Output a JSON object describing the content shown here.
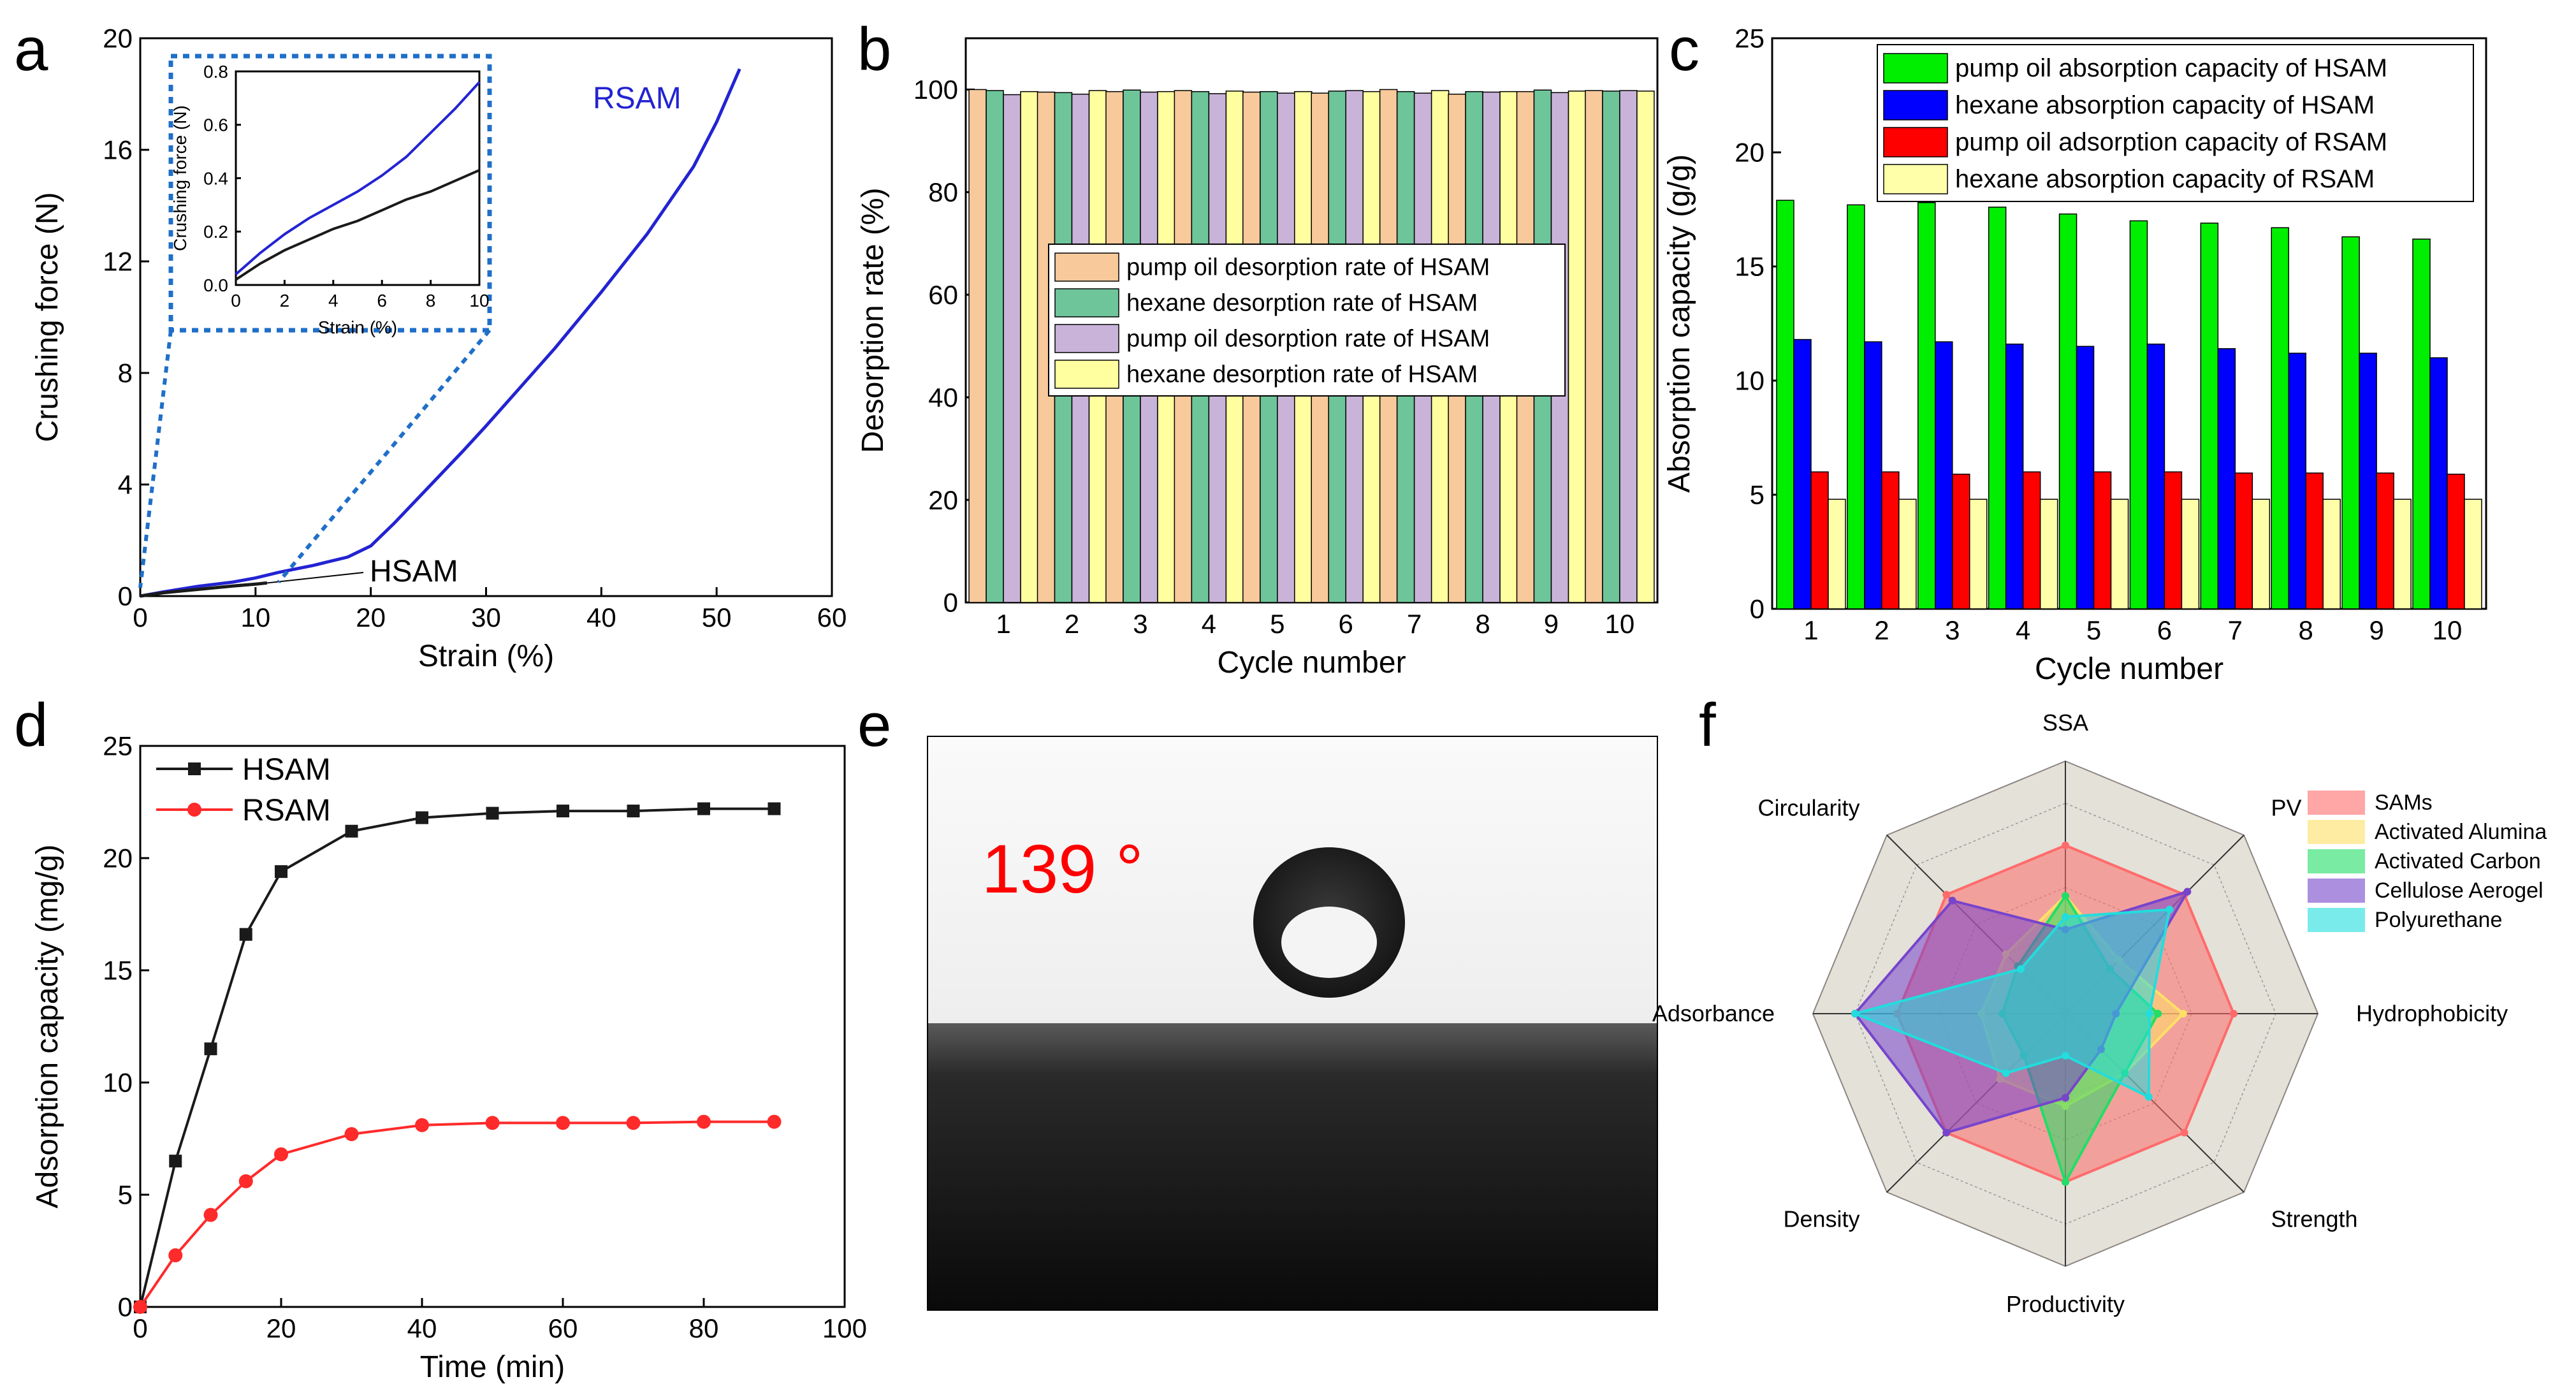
{
  "colors": {
    "axis": "#000000",
    "blue": "#2323d2",
    "black": "#1a1a1a",
    "red": "#ff2a2a",
    "inset_box": "#1f6fc8",
    "bar_b": [
      "#f7c99b",
      "#6ec59a",
      "#c9b3d9",
      "#ffffa0"
    ],
    "bar_c": [
      "#00ee00",
      "#0000ff",
      "#ff0000",
      "#ffffaa"
    ]
  },
  "chart_data": [
    {
      "panel": "a",
      "type": "line",
      "xlabel": "Strain (%)",
      "ylabel": "Crushing force (N)",
      "xlim": [
        0,
        60
      ],
      "ylim": [
        0,
        20
      ],
      "xticks": [
        0,
        10,
        20,
        30,
        40,
        50,
        60
      ],
      "yticks": [
        0,
        4,
        8,
        12,
        16,
        20
      ],
      "series": [
        {
          "name": "RSAM",
          "color": "blue",
          "x": [
            0,
            2,
            5,
            8,
            10,
            12,
            15,
            18,
            20,
            22,
            25,
            28,
            30,
            33,
            36,
            40,
            44,
            48,
            50,
            52
          ],
          "y": [
            0,
            0.15,
            0.35,
            0.5,
            0.65,
            0.85,
            1.1,
            1.4,
            1.8,
            2.6,
            3.9,
            5.2,
            6.1,
            7.5,
            8.9,
            10.9,
            13.0,
            15.4,
            17.0,
            18.9
          ]
        },
        {
          "name": "HSAM",
          "color": "black",
          "x": [
            0,
            2,
            4,
            6,
            8,
            10,
            11
          ],
          "y": [
            0,
            0.12,
            0.2,
            0.28,
            0.36,
            0.43,
            0.47
          ]
        }
      ],
      "inset": {
        "xlabel": "Strain (%)",
        "ylabel": "Crushing force (N)",
        "xlim": [
          0,
          10
        ],
        "ylim": [
          0,
          0.8
        ],
        "xticks": [
          0,
          2,
          4,
          6,
          8,
          10
        ],
        "yticks": [
          0.0,
          0.2,
          0.4,
          0.6,
          0.8
        ],
        "series": [
          {
            "name": "RSAM",
            "color": "blue",
            "x": [
              0,
              1,
              2,
              3,
              4,
              5,
              6,
              7,
              8,
              9,
              10
            ],
            "y": [
              0.04,
              0.12,
              0.19,
              0.25,
              0.3,
              0.35,
              0.41,
              0.48,
              0.57,
              0.66,
              0.76
            ]
          },
          {
            "name": "HSAM",
            "color": "black",
            "x": [
              0,
              1,
              2,
              3,
              4,
              5,
              6,
              7,
              8,
              9,
              10
            ],
            "y": [
              0.02,
              0.08,
              0.13,
              0.17,
              0.21,
              0.24,
              0.28,
              0.32,
              0.35,
              0.39,
              0.43
            ]
          }
        ]
      }
    },
    {
      "panel": "b",
      "type": "bar",
      "xlabel": "Cycle number",
      "ylabel": "Desorption rate (%)",
      "ylim": [
        0,
        110
      ],
      "yticks": [
        0,
        20,
        40,
        60,
        80,
        100
      ],
      "categories": [
        "1",
        "2",
        "3",
        "4",
        "5",
        "6",
        "7",
        "8",
        "9",
        "10"
      ],
      "series": [
        {
          "name": "pump oil desorption rate of HSAM",
          "values": [
            100,
            99.5,
            99.6,
            99.8,
            99.5,
            99.3,
            100,
            99.1,
            99.6,
            99.8
          ]
        },
        {
          "name": "hexane desorption rate of HSAM",
          "values": [
            99.8,
            99.4,
            99.9,
            99.6,
            99.6,
            99.7,
            99.6,
            99.6,
            99.9,
            99.7
          ]
        },
        {
          "name": "pump oil desorption rate of HSAM",
          "values": [
            99.0,
            99.1,
            99.5,
            99.2,
            99.3,
            99.8,
            99.3,
            99.5,
            99.4,
            99.8
          ]
        },
        {
          "name": "hexane desorption rate of HSAM",
          "values": [
            99.6,
            99.8,
            99.6,
            99.7,
            99.6,
            99.6,
            99.8,
            99.6,
            99.7,
            99.7
          ]
        }
      ]
    },
    {
      "panel": "c",
      "type": "bar",
      "xlabel": "Cycle number",
      "ylabel": "Absorption capacity (g/g)",
      "ylim": [
        0,
        25
      ],
      "yticks": [
        0,
        5,
        10,
        15,
        20,
        25
      ],
      "categories": [
        "1",
        "2",
        "3",
        "4",
        "5",
        "6",
        "7",
        "8",
        "9",
        "10"
      ],
      "series": [
        {
          "name": "pump oil absorption capacity of HSAM",
          "values": [
            17.9,
            17.7,
            17.8,
            17.6,
            17.3,
            17.0,
            16.9,
            16.7,
            16.3,
            16.2
          ]
        },
        {
          "name": "hexane absorption capacity of HSAM",
          "values": [
            11.8,
            11.7,
            11.7,
            11.6,
            11.5,
            11.6,
            11.4,
            11.2,
            11.2,
            11.0
          ]
        },
        {
          "name": "pump oil adsorption capacity of RSAM",
          "values": [
            6.0,
            6.0,
            5.9,
            6.0,
            6.0,
            6.0,
            5.95,
            5.95,
            5.95,
            5.9
          ]
        },
        {
          "name": "hexane absorption capacity of RSAM",
          "values": [
            4.8,
            4.8,
            4.8,
            4.8,
            4.8,
            4.8,
            4.8,
            4.8,
            4.8,
            4.8
          ]
        }
      ]
    },
    {
      "panel": "d",
      "type": "line",
      "xlabel": "Time (min)",
      "ylabel": "Adsorption capacity (mg/g)",
      "xlim": [
        0,
        100
      ],
      "ylim": [
        0,
        25
      ],
      "xticks": [
        0,
        20,
        40,
        60,
        80,
        100
      ],
      "yticks": [
        0,
        5,
        10,
        15,
        20,
        25
      ],
      "series": [
        {
          "name": "HSAM",
          "color": "black",
          "marker": "square",
          "x": [
            0,
            5,
            10,
            15,
            20,
            30,
            40,
            50,
            60,
            70,
            80,
            90
          ],
          "y": [
            0,
            6.5,
            11.5,
            16.6,
            19.4,
            21.2,
            21.8,
            22.0,
            22.1,
            22.1,
            22.2,
            22.2
          ]
        },
        {
          "name": "RSAM",
          "color": "red",
          "marker": "circle",
          "x": [
            0,
            5,
            10,
            15,
            20,
            30,
            40,
            50,
            60,
            70,
            80,
            90
          ],
          "y": [
            0,
            2.3,
            4.1,
            5.6,
            6.8,
            7.7,
            8.1,
            8.2,
            8.2,
            8.2,
            8.25,
            8.25
          ]
        }
      ]
    },
    {
      "panel": "f",
      "type": "radar",
      "axes": [
        "SSA",
        "PV",
        "Hydrophobicity",
        "Strength",
        "Productivity",
        "Density",
        "Adsorbance",
        "Circularity"
      ],
      "max": 5,
      "series": [
        {
          "name": "SAMs",
          "color": "#ff6b6b",
          "values": [
            4,
            4,
            4,
            4,
            4,
            4,
            4,
            4
          ]
        },
        {
          "name": "Activated Alumina",
          "color": "#ffe066",
          "values": [
            2.8,
            1.8,
            2.8,
            2.0,
            2.2,
            2.2,
            2.0,
            2.0
          ]
        },
        {
          "name": "Activated Carbon",
          "color": "#22dd66",
          "values": [
            2.8,
            1.5,
            2.2,
            2.0,
            4.0,
            1.4,
            1.5,
            1.6
          ]
        },
        {
          "name": "Cellulose Aerogel",
          "color": "#7744cc",
          "values": [
            2.0,
            4.1,
            1.2,
            1.2,
            2.0,
            4.0,
            5.0,
            3.8
          ]
        },
        {
          "name": "Polyurethane",
          "color": "#22dddd",
          "values": [
            2.3,
            3.5,
            2.0,
            2.8,
            1.0,
            2.0,
            5.0,
            1.5
          ]
        }
      ]
    }
  ],
  "labels": {
    "panel_a": "a",
    "panel_b": "b",
    "panel_c": "c",
    "panel_d": "d",
    "panel_e": "e",
    "panel_f": "f",
    "rsam_annotation": "RSAM",
    "hsam_annotation": "HSAM",
    "contact_angle": "139 °"
  }
}
